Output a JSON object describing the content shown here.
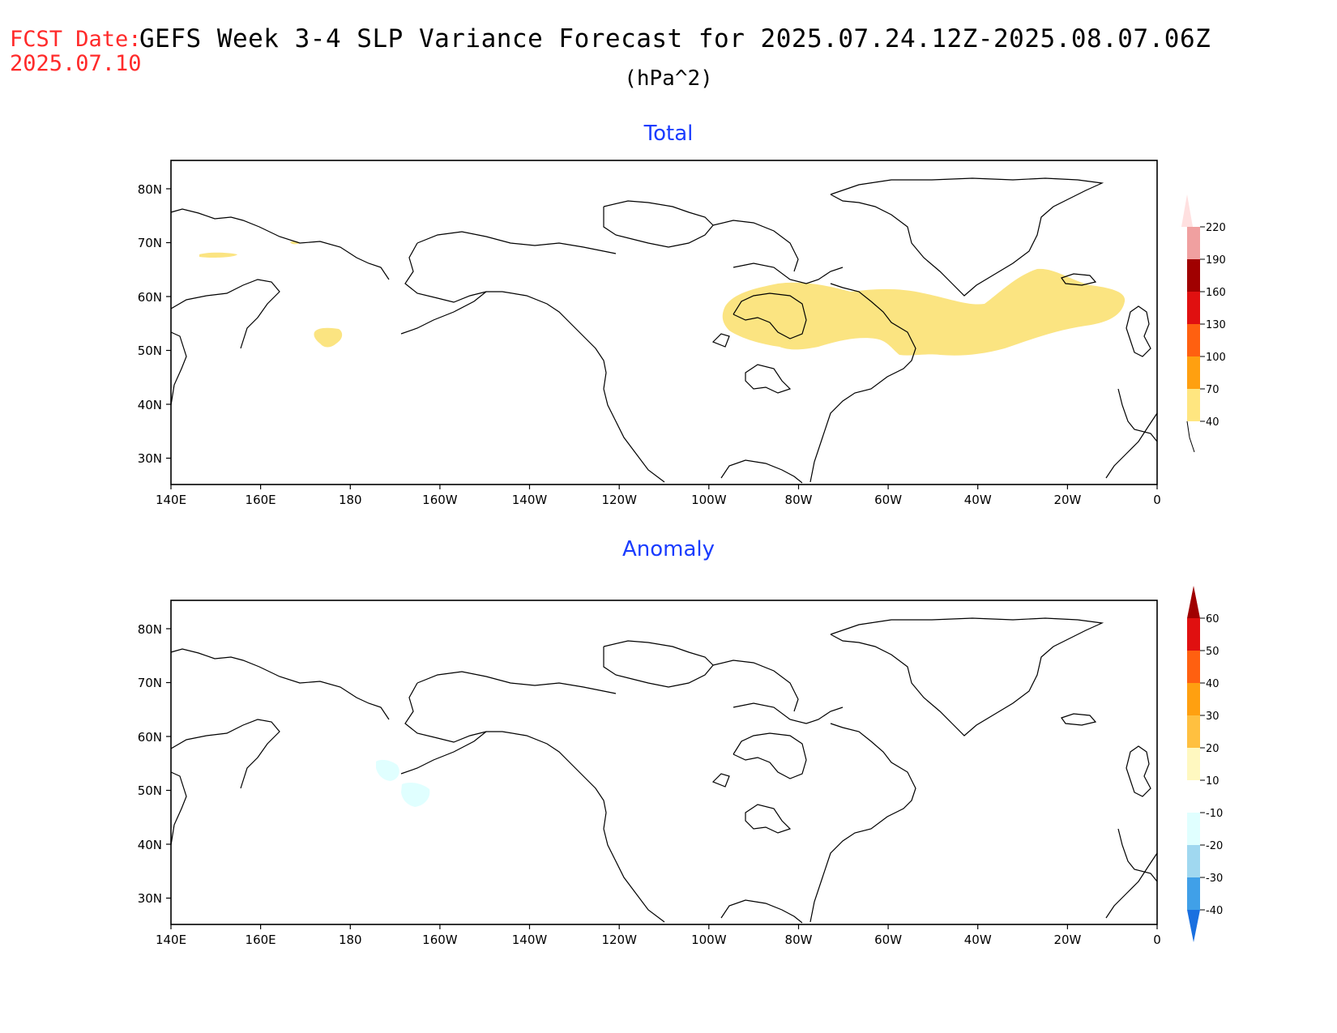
{
  "header": {
    "fcst_line1": "FCST Date:",
    "fcst_line2": "2025.07.10",
    "title": "GEFS Week 3-4 SLP Variance Forecast for 2025.07.24.12Z-2025.08.07.06Z",
    "units": "(hPa^2)"
  },
  "axes": {
    "lon_labels": [
      "140E",
      "160E",
      "180",
      "160W",
      "140W",
      "120W",
      "100W",
      "80W",
      "60W",
      "40W",
      "20W",
      "0"
    ],
    "lat_labels": [
      "80N",
      "70N",
      "60N",
      "50N",
      "40N",
      "30N"
    ]
  },
  "panels": [
    {
      "title": "Total",
      "colorbar": {
        "labels": [
          "220",
          "190",
          "160",
          "130",
          "100",
          "70",
          "40"
        ],
        "colors": [
          "#ffe0e0",
          "#f0a0a0",
          "#a00000",
          "#e01010",
          "#ff6010",
          "#ffa010",
          "#ffe680"
        ]
      },
      "shaded_regions": [
        "North Atlantic / Hudson Bay band",
        "Bering Sea patches"
      ]
    },
    {
      "title": "Anomaly",
      "colorbar": {
        "labels": [
          "60",
          "50",
          "40",
          "30",
          "20",
          "10",
          "-10",
          "-20",
          "-30",
          "-40"
        ],
        "colors": [
          "#a00000",
          "#e01010",
          "#ff6010",
          "#ffa010",
          "#ffc040",
          "#ffe680",
          "#fff8c0",
          "#ffffff",
          "#e0ffff",
          "#a0d8f0",
          "#40a0e8",
          "#1a70e0"
        ]
      },
      "shaded_regions": [
        "Aleutian negative anomaly patches"
      ]
    }
  ],
  "colors": {
    "red": "#ff2a2a",
    "blue": "#1a3cff",
    "fill_yellow": "#fbe481",
    "fill_cyan": "#e0ffff"
  }
}
